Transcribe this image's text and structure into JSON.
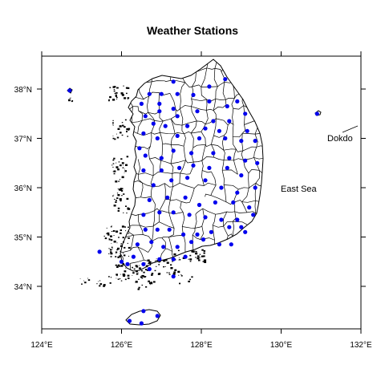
{
  "title": "Weather Stations",
  "axes": {
    "x_ticks": [
      "124°E",
      "126°E",
      "128°E",
      "130°E",
      "132°E"
    ],
    "y_ticks": [
      "38°N",
      "37°N",
      "36°N",
      "35°N",
      "34°N"
    ],
    "lon_range": [
      124,
      132
    ],
    "lat_range": [
      33.1,
      38.65
    ]
  },
  "labels": {
    "east_sea": "East Sea",
    "dokdo": "Dokdo"
  },
  "style": {
    "station_color": "#0000ee",
    "outline_color": "#000000"
  },
  "stations": [
    [
      127.3,
      38.15
    ],
    [
      128.2,
      38.05
    ],
    [
      128.6,
      38.2
    ],
    [
      127.0,
      37.9
    ],
    [
      127.4,
      37.9
    ],
    [
      127.8,
      37.88
    ],
    [
      128.2,
      37.75
    ],
    [
      128.9,
      37.75
    ],
    [
      126.7,
      37.9
    ],
    [
      126.5,
      37.7
    ],
    [
      126.95,
      37.7
    ],
    [
      127.3,
      37.6
    ],
    [
      127.9,
      37.55
    ],
    [
      128.65,
      37.65
    ],
    [
      129.1,
      37.5
    ],
    [
      126.6,
      37.45
    ],
    [
      126.95,
      37.55
    ],
    [
      127.4,
      37.45
    ],
    [
      128.3,
      37.35
    ],
    [
      128.7,
      37.35
    ],
    [
      126.8,
      37.3
    ],
    [
      127.1,
      37.25
    ],
    [
      127.65,
      37.25
    ],
    [
      128.1,
      37.2
    ],
    [
      128.45,
      37.15
    ],
    [
      129.15,
      37.15
    ],
    [
      126.55,
      37.1
    ],
    [
      126.9,
      37.0
    ],
    [
      127.4,
      37.05
    ],
    [
      127.95,
      37.0
    ],
    [
      128.6,
      37.0
    ],
    [
      129.0,
      36.95
    ],
    [
      129.35,
      36.95
    ],
    [
      126.45,
      36.8
    ],
    [
      127.3,
      36.75
    ],
    [
      127.75,
      36.7
    ],
    [
      128.3,
      36.7
    ],
    [
      128.7,
      36.6
    ],
    [
      129.1,
      36.55
    ],
    [
      129.4,
      36.5
    ],
    [
      126.6,
      36.65
    ],
    [
      127.0,
      36.6
    ],
    [
      126.55,
      36.35
    ],
    [
      127.0,
      36.35
    ],
    [
      127.45,
      36.4
    ],
    [
      127.8,
      36.45
    ],
    [
      128.2,
      36.4
    ],
    [
      128.65,
      36.4
    ],
    [
      129.0,
      36.25
    ],
    [
      126.8,
      36.05
    ],
    [
      127.25,
      36.15
    ],
    [
      127.65,
      36.2
    ],
    [
      128.1,
      36.15
    ],
    [
      128.5,
      36.0
    ],
    [
      128.9,
      35.9
    ],
    [
      129.35,
      36.0
    ],
    [
      126.7,
      35.75
    ],
    [
      127.15,
      35.8
    ],
    [
      127.6,
      35.8
    ],
    [
      127.95,
      35.65
    ],
    [
      128.35,
      35.7
    ],
    [
      128.8,
      35.7
    ],
    [
      129.2,
      35.6
    ],
    [
      126.55,
      35.45
    ],
    [
      126.95,
      35.5
    ],
    [
      127.3,
      35.5
    ],
    [
      127.7,
      35.45
    ],
    [
      128.1,
      35.4
    ],
    [
      128.5,
      35.35
    ],
    [
      128.9,
      35.35
    ],
    [
      129.3,
      35.45
    ],
    [
      126.6,
      35.15
    ],
    [
      126.9,
      35.15
    ],
    [
      127.2,
      35.15
    ],
    [
      127.55,
      35.05
    ],
    [
      127.9,
      35.05
    ],
    [
      128.25,
      35.1
    ],
    [
      128.7,
      35.2
    ],
    [
      129.0,
      35.2
    ],
    [
      129.1,
      35.1
    ],
    [
      126.4,
      34.85
    ],
    [
      126.75,
      34.9
    ],
    [
      127.05,
      34.8
    ],
    [
      127.4,
      34.8
    ],
    [
      127.75,
      34.9
    ],
    [
      128.05,
      34.95
    ],
    [
      128.45,
      34.85
    ],
    [
      128.75,
      34.85
    ],
    [
      126.3,
      34.6
    ],
    [
      126.55,
      34.45
    ],
    [
      126.95,
      34.55
    ],
    [
      127.3,
      34.55
    ],
    [
      127.6,
      34.6
    ],
    [
      126.0,
      34.5
    ],
    [
      126.7,
      34.35
    ],
    [
      127.3,
      34.2
    ],
    [
      126.15,
      34.45
    ],
    [
      125.45,
      34.7
    ],
    [
      124.7,
      37.97
    ],
    [
      130.9,
      37.5
    ],
    [
      126.55,
      33.5
    ],
    [
      126.9,
      33.4
    ],
    [
      126.2,
      33.3
    ],
    [
      126.5,
      33.25
    ]
  ]
}
